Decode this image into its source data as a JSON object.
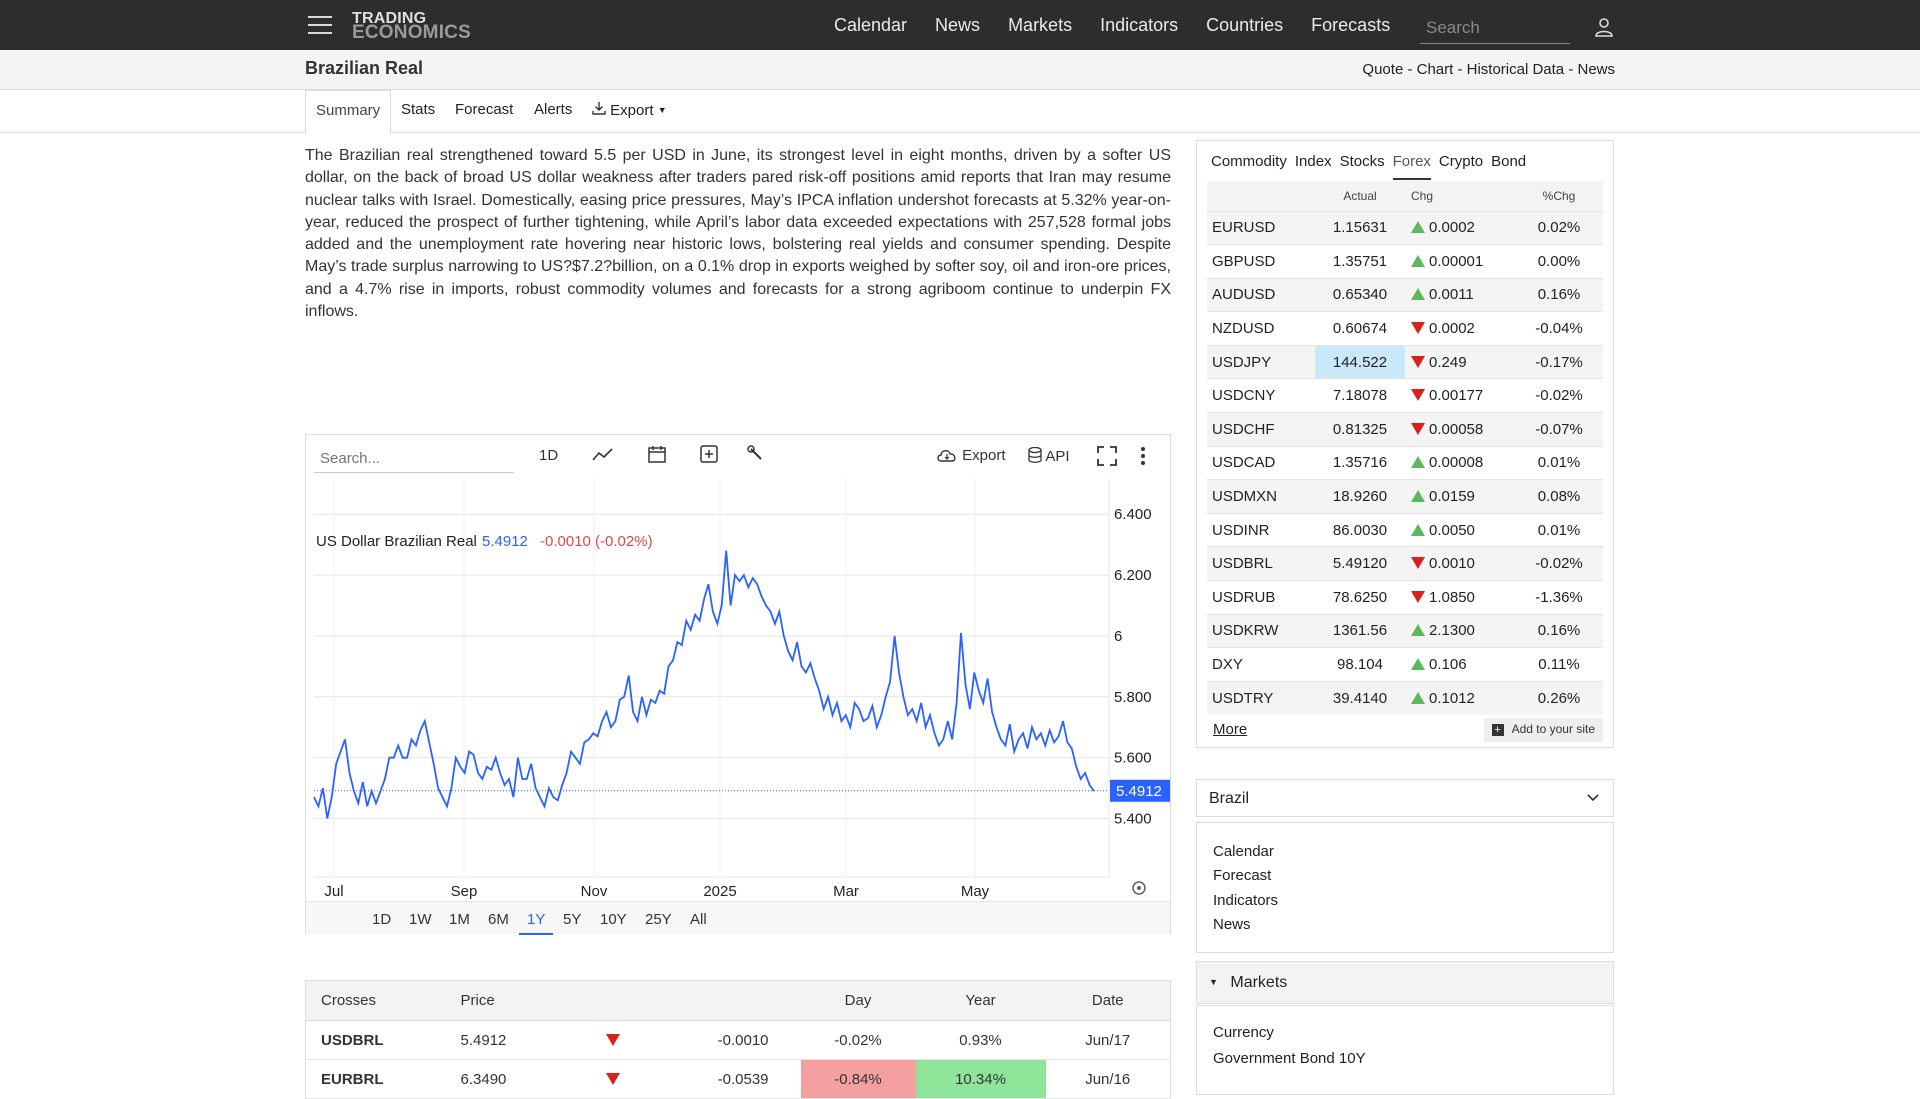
{
  "brand": {
    "line1": "TRADING",
    "line2": "ECONOMICS"
  },
  "nav": [
    "Calendar",
    "News",
    "Markets",
    "Indicators",
    "Countries",
    "Forecasts"
  ],
  "search": {
    "placeholder": "Search"
  },
  "page": {
    "title": "Brazilian Real",
    "links": "Quote - Chart - Historical Data - News"
  },
  "tabs": [
    "Summary",
    "Stats",
    "Forecast",
    "Alerts",
    "Export"
  ],
  "summary_text": "The Brazilian real strengthened toward 5.5 per USD in June, its strongest level in eight months, driven by a softer US dollar, on the back of broad US dollar weakness after traders pared risk-off positions amid reports that Iran may resume nuclear talks with Israel. Domestically, easing price pressures, May’s IPCA inflation undershot forecasts at 5.32% year-on-year, reduced the prospect of further tightening, while April’s labor data exceeded expectations with 257,528 formal jobs added and the unemployment rate hovering near historic lows, bolstering real yields and consumer spending. Despite May’s trade surplus narrowing to US?$7.2?billion, on a 0.1% drop in exports weighed by softer soy, oil and iron-ore prices, and a 4.7% rise in imports, robust commodity volumes and forecasts for a strong agriboom continue to underpin FX inflows.",
  "chart_toolbar": {
    "search_placeholder": "Search...",
    "interval": "1D",
    "export": "Export",
    "api": "API"
  },
  "chart_data": {
    "type": "line",
    "title": "US Dollar Brazilian Real",
    "last_value": "5.4912",
    "change": "-0.0010 (-0.02%)",
    "x_ticks": [
      "Jul",
      "Sep",
      "Nov",
      "2025",
      "Mar",
      "May"
    ],
    "y_ticks": [
      "6.400",
      "6.200",
      "6",
      "5.800",
      "5.600",
      "5.400"
    ],
    "ylim": [
      5.29,
      6.45
    ],
    "current_label": "5.4912",
    "series": [
      {
        "values": [
          5.47,
          5.44,
          5.5,
          5.4,
          5.47,
          5.58,
          5.62,
          5.66,
          5.55,
          5.49,
          5.45,
          5.52,
          5.44,
          5.49,
          5.45,
          5.49,
          5.53,
          5.6,
          5.6,
          5.64,
          5.6,
          5.6,
          5.66,
          5.64,
          5.69,
          5.72,
          5.65,
          5.58,
          5.5,
          5.47,
          5.44,
          5.5,
          5.6,
          5.57,
          5.55,
          5.62,
          5.61,
          5.55,
          5.53,
          5.57,
          5.56,
          5.6,
          5.55,
          5.51,
          5.53,
          5.47,
          5.6,
          5.53,
          5.53,
          5.58,
          5.5,
          5.47,
          5.44,
          5.5,
          5.47,
          5.46,
          5.51,
          5.55,
          5.62,
          5.6,
          5.58,
          5.65,
          5.66,
          5.68,
          5.67,
          5.72,
          5.75,
          5.7,
          5.72,
          5.79,
          5.8,
          5.87,
          5.75,
          5.72,
          5.8,
          5.74,
          5.79,
          5.78,
          5.82,
          5.81,
          5.9,
          5.92,
          5.98,
          5.97,
          6.05,
          6.02,
          6.07,
          6.05,
          6.12,
          6.17,
          6.08,
          6.04,
          6.1,
          6.28,
          6.1,
          6.2,
          6.18,
          6.2,
          6.16,
          6.19,
          6.17,
          6.13,
          6.1,
          6.08,
          6.04,
          6.08,
          6.0,
          5.95,
          5.92,
          5.98,
          5.9,
          5.88,
          5.91,
          5.86,
          5.82,
          5.76,
          5.8,
          5.74,
          5.78,
          5.72,
          5.74,
          5.7,
          5.78,
          5.76,
          5.72,
          5.73,
          5.77,
          5.7,
          5.74,
          5.8,
          5.85,
          6.0,
          5.88,
          5.8,
          5.74,
          5.76,
          5.72,
          5.78,
          5.7,
          5.74,
          5.68,
          5.64,
          5.66,
          5.72,
          5.66,
          5.78,
          6.01,
          5.84,
          5.76,
          5.88,
          5.82,
          5.78,
          5.86,
          5.75,
          5.7,
          5.66,
          5.64,
          5.71,
          5.62,
          5.66,
          5.68,
          5.63,
          5.7,
          5.66,
          5.68,
          5.64,
          5.69,
          5.65,
          5.67,
          5.72,
          5.65,
          5.63,
          5.57,
          5.53,
          5.55,
          5.51,
          5.49
        ]
      }
    ]
  },
  "ranges": [
    "1D",
    "1W",
    "1M",
    "6M",
    "1Y",
    "5Y",
    "10Y",
    "25Y",
    "All"
  ],
  "active_range": "1Y",
  "crosses": {
    "headers": [
      "Crosses",
      "Price",
      "",
      "Day",
      "Year",
      "Date"
    ],
    "rows": [
      {
        "symbol": "USDBRL",
        "price": "5.4912",
        "dir": "down",
        "change": "-0.0010",
        "day": "-0.02%",
        "year": "0.93%",
        "date": "Jun/17"
      },
      {
        "symbol": "EURBRL",
        "price": "6.3490",
        "dir": "down",
        "change": "-0.0539",
        "day": "-0.84%",
        "year": "10.34%",
        "date": "Jun/16"
      }
    ]
  },
  "market_tabs": [
    "Commodity",
    "Index",
    "Stocks",
    "Forex",
    "Crypto",
    "Bond"
  ],
  "market_active": "Forex",
  "fx_headers": [
    "",
    "Actual",
    "Chg",
    "%Chg"
  ],
  "fx_rows": [
    {
      "sym": "EURUSD",
      "actual": "1.15631",
      "dir": "up",
      "chg": "0.0002",
      "pct": "0.02%"
    },
    {
      "sym": "GBPUSD",
      "actual": "1.35751",
      "dir": "up",
      "chg": "0.00001",
      "pct": "0.00%"
    },
    {
      "sym": "AUDUSD",
      "actual": "0.65340",
      "dir": "up",
      "chg": "0.0011",
      "pct": "0.16%"
    },
    {
      "sym": "NZDUSD",
      "actual": "0.60674",
      "dir": "down",
      "chg": "0.0002",
      "pct": "-0.04%"
    },
    {
      "sym": "USDJPY",
      "actual": "144.522",
      "dir": "down",
      "chg": "0.249",
      "pct": "-0.17%"
    },
    {
      "sym": "USDCNY",
      "actual": "7.18078",
      "dir": "down",
      "chg": "0.00177",
      "pct": "-0.02%"
    },
    {
      "sym": "USDCHF",
      "actual": "0.81325",
      "dir": "down",
      "chg": "0.00058",
      "pct": "-0.07%"
    },
    {
      "sym": "USDCAD",
      "actual": "1.35716",
      "dir": "up",
      "chg": "0.00008",
      "pct": "0.01%"
    },
    {
      "sym": "USDMXN",
      "actual": "18.9260",
      "dir": "up",
      "chg": "0.0159",
      "pct": "0.08%"
    },
    {
      "sym": "USDINR",
      "actual": "86.0030",
      "dir": "up",
      "chg": "0.0050",
      "pct": "0.01%"
    },
    {
      "sym": "USDBRL",
      "actual": "5.49120",
      "dir": "down",
      "chg": "0.0010",
      "pct": "-0.02%"
    },
    {
      "sym": "USDRUB",
      "actual": "78.6250",
      "dir": "down",
      "chg": "1.0850",
      "pct": "-1.36%"
    },
    {
      "sym": "USDKRW",
      "actual": "1361.56",
      "dir": "up",
      "chg": "2.1300",
      "pct": "0.16%"
    },
    {
      "sym": "DXY",
      "actual": "98.104",
      "dir": "up",
      "chg": "0.106",
      "pct": "0.11%"
    },
    {
      "sym": "USDTRY",
      "actual": "39.4140",
      "dir": "up",
      "chg": "0.1012",
      "pct": "0.26%"
    }
  ],
  "fx_more": "More",
  "add_site": "Add to your site",
  "brazil": {
    "header": "Brazil",
    "links": [
      "Calendar",
      "Forecast",
      "Indicators",
      "News"
    ]
  },
  "markets": {
    "header": "Markets",
    "links": [
      "Currency",
      "Government Bond 10Y"
    ]
  },
  "colors": {
    "line": "#2962ff",
    "up": "#1d7a1d",
    "down": "#c31a1a",
    "topbar": "#2d2d2d"
  }
}
